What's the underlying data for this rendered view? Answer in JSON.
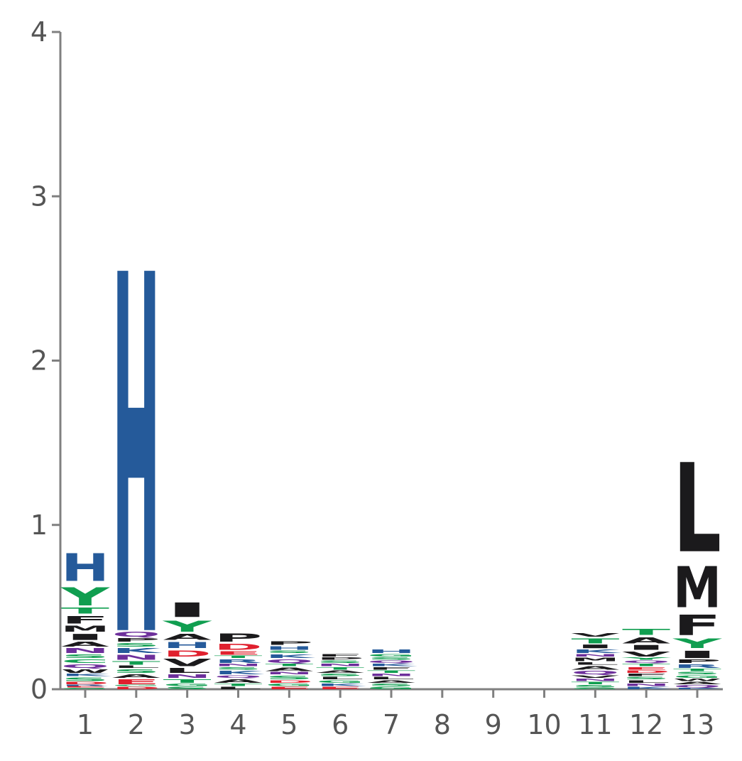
{
  "chart_data": {
    "type": "sequence-logo",
    "title": "",
    "xlabel": "",
    "ylabel": "",
    "ylim": [
      0,
      4
    ],
    "yticks": [
      "0",
      "1",
      "2",
      "3",
      "4"
    ],
    "xticks": [
      "1",
      "2",
      "3",
      "4",
      "5",
      "6",
      "7",
      "8",
      "9",
      "10",
      "11",
      "12",
      "13"
    ],
    "colors": {
      "H": "#255a9a",
      "K": "#255a9a",
      "R": "#255a9a",
      "D": "#e0202e",
      "E": "#e0202e",
      "N": "#6d2f9b",
      "Q": "#6d2f9b",
      "S": "#109e50",
      "T": "#109e50",
      "G": "#109e50",
      "Y": "#109e50",
      "C": "#109e50",
      "A": "#1b1a1c",
      "V": "#1b1a1c",
      "L": "#1b1a1c",
      "I": "#1b1a1c",
      "M": "#1b1a1c",
      "F": "#1b1a1c",
      "W": "#1b1a1c",
      "P": "#1b1a1c"
    },
    "positions": [
      {
        "position": "1",
        "letters": [
          {
            "aa": "G",
            "height": 0.01
          },
          {
            "aa": "E",
            "height": 0.01
          },
          {
            "aa": "R",
            "height": 0.01
          },
          {
            "aa": "D",
            "height": 0.02
          },
          {
            "aa": "S",
            "height": 0.03
          },
          {
            "aa": "K",
            "height": 0.02
          },
          {
            "aa": "W",
            "height": 0.03
          },
          {
            "aa": "Q",
            "height": 0.03
          },
          {
            "aa": "C",
            "height": 0.03
          },
          {
            "aa": "S",
            "height": 0.03
          },
          {
            "aa": "N",
            "height": 0.04
          },
          {
            "aa": "A",
            "height": 0.04
          },
          {
            "aa": "I",
            "height": 0.05
          },
          {
            "aa": "M",
            "height": 0.05
          },
          {
            "aa": "F",
            "height": 0.06
          },
          {
            "aa": "T",
            "height": 0.05
          },
          {
            "aa": "Y",
            "height": 0.15
          },
          {
            "aa": "H",
            "height": 0.23
          }
        ]
      },
      {
        "position": "2",
        "letters": [
          {
            "aa": "D",
            "height": 0.02
          },
          {
            "aa": "G",
            "height": 0.01
          },
          {
            "aa": "E",
            "height": 0.04
          },
          {
            "aa": "A",
            "height": 0.03
          },
          {
            "aa": "S",
            "height": 0.03
          },
          {
            "aa": "L",
            "height": 0.02
          },
          {
            "aa": "T",
            "height": 0.03
          },
          {
            "aa": "N",
            "height": 0.04
          },
          {
            "aa": "K",
            "height": 0.04
          },
          {
            "aa": "S",
            "height": 0.03
          },
          {
            "aa": "P",
            "height": 0.03
          },
          {
            "aa": "Q",
            "height": 0.04
          },
          {
            "aa": "H",
            "height": 2.98
          }
        ]
      },
      {
        "position": "3",
        "letters": [
          {
            "aa": "S",
            "height": 0.02
          },
          {
            "aa": "G",
            "height": 0.02
          },
          {
            "aa": "T",
            "height": 0.03
          },
          {
            "aa": "N",
            "height": 0.03
          },
          {
            "aa": "L",
            "height": 0.04
          },
          {
            "aa": "V",
            "height": 0.06
          },
          {
            "aa": "D",
            "height": 0.05
          },
          {
            "aa": "H",
            "height": 0.05
          },
          {
            "aa": "A",
            "height": 0.05
          },
          {
            "aa": "Y",
            "height": 0.09
          },
          {
            "aa": "I",
            "height": 0.12
          }
        ]
      },
      {
        "position": "4",
        "letters": [
          {
            "aa": "L",
            "height": 0.02
          },
          {
            "aa": "T",
            "height": 0.02
          },
          {
            "aa": "A",
            "height": 0.03
          },
          {
            "aa": "Q",
            "height": 0.02
          },
          {
            "aa": "K",
            "height": 0.03
          },
          {
            "aa": "S",
            "height": 0.02
          },
          {
            "aa": "N",
            "height": 0.02
          },
          {
            "aa": "R",
            "height": 0.03
          },
          {
            "aa": "T",
            "height": 0.02
          },
          {
            "aa": "E",
            "height": 0.03
          },
          {
            "aa": "D",
            "height": 0.05
          },
          {
            "aa": "P",
            "height": 0.07
          }
        ]
      },
      {
        "position": "5",
        "letters": [
          {
            "aa": "E",
            "height": 0.02
          },
          {
            "aa": "G",
            "height": 0.02
          },
          {
            "aa": "D",
            "height": 0.02
          },
          {
            "aa": "S",
            "height": 0.03
          },
          {
            "aa": "N",
            "height": 0.02
          },
          {
            "aa": "A",
            "height": 0.03
          },
          {
            "aa": "T",
            "height": 0.02
          },
          {
            "aa": "Q",
            "height": 0.03
          },
          {
            "aa": "K",
            "height": 0.03
          },
          {
            "aa": "S",
            "height": 0.02
          },
          {
            "aa": "H",
            "height": 0.03
          },
          {
            "aa": "P",
            "height": 0.03
          }
        ]
      },
      {
        "position": "6",
        "letters": [
          {
            "aa": "E",
            "height": 0.02
          },
          {
            "aa": "K",
            "height": 0.02
          },
          {
            "aa": "G",
            "height": 0.02
          },
          {
            "aa": "L",
            "height": 0.02
          },
          {
            "aa": "S",
            "height": 0.02
          },
          {
            "aa": "A",
            "height": 0.02
          },
          {
            "aa": "T",
            "height": 0.02
          },
          {
            "aa": "N",
            "height": 0.02
          },
          {
            "aa": "S",
            "height": 0.02
          },
          {
            "aa": "P",
            "height": 0.02
          },
          {
            "aa": "F",
            "height": 0.02
          }
        ]
      },
      {
        "position": "7",
        "letters": [
          {
            "aa": "G",
            "height": 0.02
          },
          {
            "aa": "S",
            "height": 0.02
          },
          {
            "aa": "A",
            "height": 0.02
          },
          {
            "aa": "L",
            "height": 0.02
          },
          {
            "aa": "N",
            "height": 0.02
          },
          {
            "aa": "T",
            "height": 0.02
          },
          {
            "aa": "F",
            "height": 0.02
          },
          {
            "aa": "K",
            "height": 0.02
          },
          {
            "aa": "Q",
            "height": 0.02
          },
          {
            "aa": "S",
            "height": 0.02
          },
          {
            "aa": "G",
            "height": 0.02
          },
          {
            "aa": "H",
            "height": 0.03
          }
        ]
      },
      {
        "position": "8",
        "letters": []
      },
      {
        "position": "9",
        "letters": []
      },
      {
        "position": "10",
        "letters": []
      },
      {
        "position": "11",
        "letters": [
          {
            "aa": "G",
            "height": 0.01
          },
          {
            "aa": "S",
            "height": 0.02
          },
          {
            "aa": "T",
            "height": 0.02
          },
          {
            "aa": "N",
            "height": 0.02
          },
          {
            "aa": "V",
            "height": 0.02
          },
          {
            "aa": "Q",
            "height": 0.03
          },
          {
            "aa": "A",
            "height": 0.03
          },
          {
            "aa": "L",
            "height": 0.02
          },
          {
            "aa": "M",
            "height": 0.03
          },
          {
            "aa": "N",
            "height": 0.02
          },
          {
            "aa": "K",
            "height": 0.03
          },
          {
            "aa": "I",
            "height": 0.03
          },
          {
            "aa": "T",
            "height": 0.04
          },
          {
            "aa": "V",
            "height": 0.03
          }
        ]
      },
      {
        "position": "12",
        "letters": [
          {
            "aa": "K",
            "height": 0.02
          },
          {
            "aa": "N",
            "height": 0.02
          },
          {
            "aa": "L",
            "height": 0.02
          },
          {
            "aa": "S",
            "height": 0.02
          },
          {
            "aa": "F",
            "height": 0.02
          },
          {
            "aa": "D",
            "height": 0.02
          },
          {
            "aa": "E",
            "height": 0.02
          },
          {
            "aa": "T",
            "height": 0.02
          },
          {
            "aa": "Q",
            "height": 0.02
          },
          {
            "aa": "Y",
            "height": 0.02
          },
          {
            "aa": "V",
            "height": 0.04
          },
          {
            "aa": "I",
            "height": 0.04
          },
          {
            "aa": "A",
            "height": 0.05
          },
          {
            "aa": "T",
            "height": 0.05
          }
        ]
      },
      {
        "position": "13",
        "letters": [
          {
            "aa": "K",
            "height": 0.01
          },
          {
            "aa": "Q",
            "height": 0.02
          },
          {
            "aa": "A",
            "height": 0.02
          },
          {
            "aa": "W",
            "height": 0.02
          },
          {
            "aa": "G",
            "height": 0.02
          },
          {
            "aa": "S",
            "height": 0.02
          },
          {
            "aa": "T",
            "height": 0.02
          },
          {
            "aa": "R",
            "height": 0.03
          },
          {
            "aa": "P",
            "height": 0.03
          },
          {
            "aa": "I",
            "height": 0.06
          },
          {
            "aa": "Y",
            "height": 0.08
          },
          {
            "aa": "F",
            "height": 0.17
          },
          {
            "aa": "M",
            "height": 0.34
          },
          {
            "aa": "L",
            "height": 0.74
          }
        ]
      }
    ]
  }
}
